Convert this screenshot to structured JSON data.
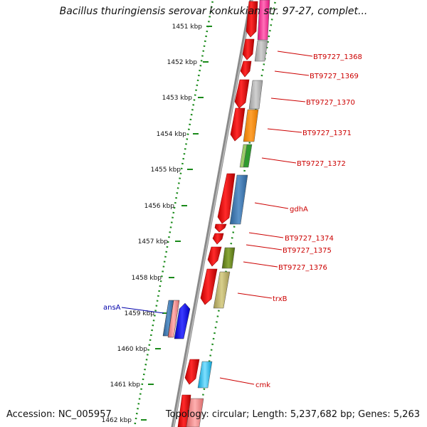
{
  "title": "Bacillus thuringiensis serovar konkukian str. 97-27, complet...",
  "footer": {
    "accession": "Accession: NC_005957",
    "summary": "Topology: circular; Length: 5,237,682 bp; Genes: 5,263"
  },
  "ruler_labels": [
    "1451 kbp",
    "1452 kbp",
    "1453 kbp",
    "1454 kbp",
    "1455 kbp",
    "1456 kbp",
    "1457 kbp",
    "1458 kbp",
    "1459 kbp",
    "1460 kbp",
    "1461 kbp",
    "1462 kbp"
  ],
  "gene_labels": [
    {
      "text": "BT9727_1368",
      "color": "#cc0000"
    },
    {
      "text": "BT9727_1369",
      "color": "#cc0000"
    },
    {
      "text": "BT9727_1370",
      "color": "#cc0000"
    },
    {
      "text": "BT9727_1371",
      "color": "#cc0000"
    },
    {
      "text": "BT9727_1372",
      "color": "#cc0000"
    },
    {
      "text": "gdhA",
      "color": "#cc0000"
    },
    {
      "text": "BT9727_1374",
      "color": "#cc0000"
    },
    {
      "text": "BT9727_1375",
      "color": "#cc0000"
    },
    {
      "text": "BT9727_1376",
      "color": "#cc0000"
    },
    {
      "text": "trxB",
      "color": "#cc0000"
    },
    {
      "text": "cmk",
      "color": "#cc0000"
    },
    {
      "text": "ansA",
      "color": "#0000aa"
    }
  ],
  "colors": {
    "backbone": "#8a8a8a",
    "ruler": "#1a8a1a",
    "cds": "#ff0000",
    "label_red": "#cc0000",
    "label_blue": "#0000aa"
  }
}
